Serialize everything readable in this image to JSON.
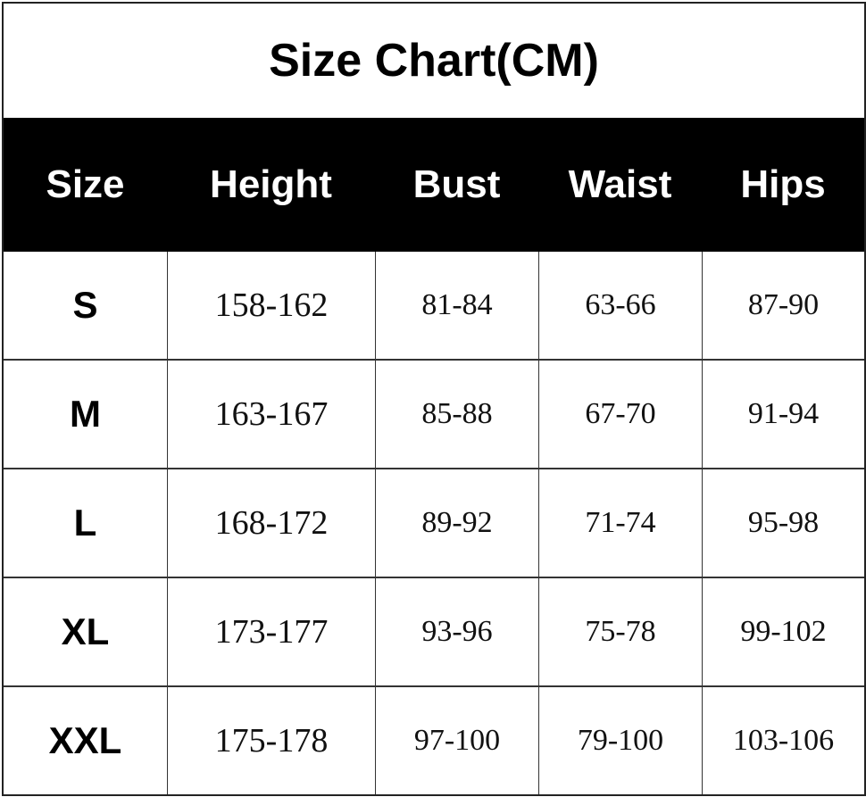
{
  "chart_data": {
    "type": "table",
    "title": "Size Chart(CM)",
    "columns": [
      "Size",
      "Height",
      "Bust",
      "Waist",
      "Hips"
    ],
    "rows": [
      [
        "S",
        "158-162",
        "81-84",
        "63-66",
        "87-90"
      ],
      [
        "M",
        "163-167",
        "85-88",
        "67-70",
        "91-94"
      ],
      [
        "L",
        "168-172",
        "89-92",
        "71-74",
        "95-98"
      ],
      [
        "XL",
        "173-177",
        "93-96",
        "75-78",
        "99-102"
      ],
      [
        "XXL",
        "175-178",
        "97-100",
        "79-100",
        "103-106"
      ]
    ],
    "colors": {
      "header_bg": "#000000",
      "header_text": "#ffffff",
      "grid": "#333333"
    }
  }
}
